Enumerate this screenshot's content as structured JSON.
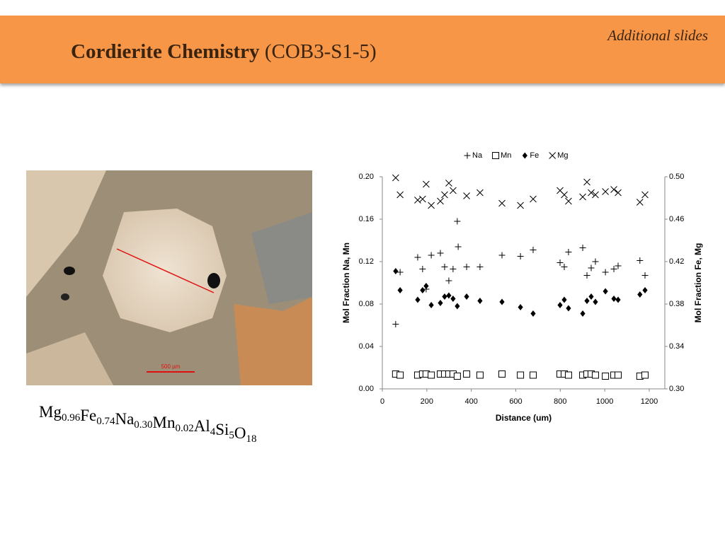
{
  "header": {
    "title": "Cordierite Chemistry",
    "subtitle": "(COB3-S1-5)",
    "note": "Additional slides"
  },
  "photo": {
    "scale_label": "500 µm"
  },
  "formula": {
    "parts": [
      {
        "text": "Mg",
        "sub": "0.96"
      },
      {
        "text": "Fe",
        "sub": "0.74"
      },
      {
        "text": "Na",
        "sub": "0.30"
      },
      {
        "text": "Mn",
        "sub": "0.02"
      },
      {
        "text": "Al",
        "sub": "4"
      },
      {
        "text": "Si",
        "sub": "5"
      },
      {
        "text": "O",
        "sub": "18"
      }
    ]
  },
  "chart_data": {
    "type": "scatter",
    "xlabel": "Distance (um)",
    "ylabel": "Mol Fraction Na, Mn",
    "y2label": "Mol Fraction Fe, Mg",
    "xlim": [
      0,
      1270
    ],
    "xticks": [
      0,
      200,
      400,
      600,
      800,
      1000,
      1200
    ],
    "ylim": [
      0,
      0.2
    ],
    "yticks": [
      {
        "value": 0,
        "label": "0.00"
      },
      0.04,
      0.08,
      0.12,
      0.16,
      {
        "value": 0.2,
        "label": "0.20"
      }
    ],
    "y2lim": [
      0.3,
      0.5
    ],
    "y2ticks": [
      {
        "value": 0.3,
        "label": "0.30"
      },
      0.34,
      0.38,
      0.42,
      0.46,
      {
        "value": 0.5,
        "label": "0.50"
      }
    ],
    "legend": "top",
    "grid": false,
    "series": [
      {
        "name": "Na",
        "marker": "plus",
        "color": "#000000",
        "x": [
          60,
          80,
          159,
          181,
          197,
          220,
          261,
          280,
          299,
          318,
          337,
          341,
          379,
          439,
          538,
          621,
          678,
          799,
          818,
          837,
          901,
          920,
          939,
          958,
          1003,
          1041,
          1060,
          1158,
          1181
        ],
        "values": [
          0.061,
          0.11,
          0.124,
          0.113,
          0.094,
          0.126,
          0.128,
          0.115,
          0.102,
          0.113,
          0.158,
          0.134,
          0.115,
          0.115,
          0.126,
          0.125,
          0.131,
          0.119,
          0.115,
          0.129,
          0.133,
          0.107,
          0.114,
          0.12,
          0.11,
          0.113,
          0.116,
          0.121,
          0.107
        ]
      },
      {
        "name": "Mn",
        "marker": "square",
        "color": "#000000",
        "x": [
          60,
          80,
          159,
          181,
          197,
          220,
          261,
          280,
          299,
          318,
          337,
          379,
          439,
          538,
          621,
          678,
          799,
          818,
          837,
          901,
          920,
          939,
          958,
          1003,
          1041,
          1060,
          1158,
          1181
        ],
        "values": [
          0.014,
          0.013,
          0.013,
          0.014,
          0.014,
          0.013,
          0.014,
          0.014,
          0.014,
          0.014,
          0.012,
          0.014,
          0.013,
          0.014,
          0.013,
          0.013,
          0.014,
          0.014,
          0.013,
          0.013,
          0.014,
          0.014,
          0.013,
          0.012,
          0.013,
          0.013,
          0.012,
          0.013
        ]
      },
      {
        "name": "Fe",
        "marker": "diamond",
        "color": "#000000",
        "axis": "y2",
        "x": [
          60,
          80,
          159,
          181,
          197,
          220,
          261,
          280,
          299,
          318,
          337,
          379,
          439,
          538,
          621,
          678,
          799,
          818,
          837,
          901,
          920,
          939,
          958,
          1003,
          1041,
          1060,
          1158,
          1181
        ],
        "values": [
          0.411,
          0.393,
          0.384,
          0.393,
          0.397,
          0.379,
          0.381,
          0.387,
          0.388,
          0.385,
          0.378,
          0.387,
          0.383,
          0.382,
          0.377,
          0.371,
          0.379,
          0.384,
          0.376,
          0.371,
          0.383,
          0.387,
          0.382,
          0.392,
          0.385,
          0.384,
          0.389,
          0.393
        ]
      },
      {
        "name": "Mg",
        "marker": "x",
        "color": "#000000",
        "axis": "y2",
        "x": [
          60,
          80,
          159,
          181,
          197,
          220,
          261,
          280,
          299,
          318,
          379,
          439,
          538,
          621,
          678,
          799,
          818,
          837,
          901,
          920,
          939,
          958,
          1003,
          1041,
          1060,
          1158,
          1181
        ],
        "values": [
          0.499,
          0.483,
          0.478,
          0.479,
          0.493,
          0.473,
          0.477,
          0.483,
          0.494,
          0.487,
          0.482,
          0.485,
          0.475,
          0.473,
          0.479,
          0.487,
          0.483,
          0.477,
          0.481,
          0.495,
          0.485,
          0.483,
          0.486,
          0.488,
          0.485,
          0.476,
          0.483
        ]
      }
    ]
  }
}
